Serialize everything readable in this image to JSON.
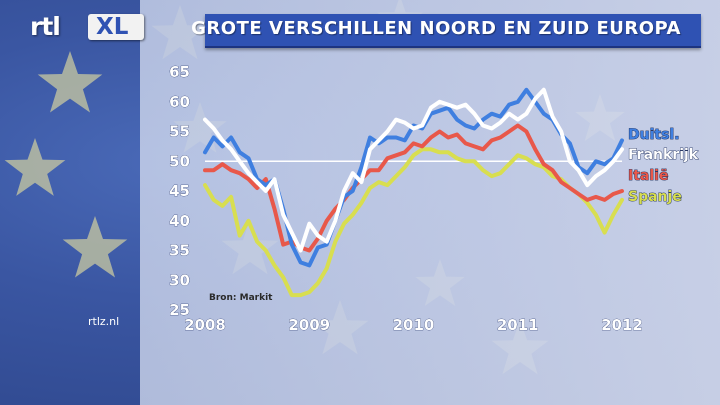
{
  "header": {
    "title": "GROTE VERSCHILLEN NOORD EN ZUID EUROPA",
    "logo_text": "rtl",
    "logo_badge": "XL"
  },
  "footer": {
    "url": "rtlz.nl"
  },
  "colors": {
    "titlebar": "#2f52b3",
    "background": "#3a56a2",
    "Duitsl.": "#3f7fe0",
    "Frankrijk": "#ffffff",
    "Italië": "#e8584a",
    "Spanje": "#d8de50"
  },
  "chart_data": {
    "type": "line",
    "title": "",
    "xlabel": "",
    "ylabel": "",
    "source": "Bron: Markit",
    "xlim": [
      2008,
      2012
    ],
    "ylim": [
      25,
      65
    ],
    "x_ticks": [
      "2008",
      "2009",
      "2010",
      "2011",
      "2012"
    ],
    "y_ticks": [
      65,
      60,
      55,
      50,
      45,
      40,
      35,
      30,
      25
    ],
    "reference_line": 50,
    "grid": false,
    "legend_position": "right",
    "x": [
      2008.0,
      2008.083,
      2008.167,
      2008.25,
      2008.333,
      2008.417,
      2008.5,
      2008.583,
      2008.667,
      2008.75,
      2008.833,
      2008.917,
      2009.0,
      2009.083,
      2009.167,
      2009.25,
      2009.333,
      2009.417,
      2009.5,
      2009.583,
      2009.667,
      2009.75,
      2009.833,
      2009.917,
      2010.0,
      2010.083,
      2010.167,
      2010.25,
      2010.333,
      2010.417,
      2010.5,
      2010.583,
      2010.667,
      2010.75,
      2010.833,
      2010.917,
      2011.0,
      2011.083,
      2011.167,
      2011.25,
      2011.333,
      2011.417,
      2011.5,
      2011.583,
      2011.667,
      2011.75,
      2011.833,
      2011.917,
      2012.0
    ],
    "series": [
      {
        "name": "Duitsl.",
        "values": [
          51.5,
          54,
          52.5,
          54,
          51.5,
          50.5,
          47,
          46,
          47,
          42,
          36,
          33,
          32.5,
          35.5,
          36,
          40,
          44,
          45,
          49,
          54,
          53,
          54,
          54,
          53.5,
          56,
          55.5,
          58,
          58.5,
          59,
          57,
          56,
          55.5,
          57,
          58,
          57.5,
          59.5,
          60,
          62,
          60,
          58,
          57,
          54.5,
          53,
          49,
          48,
          50,
          49.5,
          50.5,
          53.5
        ]
      },
      {
        "name": "Frankrijk",
        "values": [
          57,
          55.5,
          53.5,
          52,
          50,
          48,
          46.5,
          45,
          47,
          41,
          38,
          35,
          39.5,
          37.5,
          36.5,
          40,
          45,
          48,
          46.5,
          52,
          53.5,
          55,
          57,
          56.5,
          55.5,
          56,
          59,
          60,
          59.5,
          59,
          59.5,
          58,
          56,
          55.5,
          56.5,
          58,
          57,
          58,
          60.5,
          62,
          57.5,
          55,
          50,
          48.5,
          46,
          47.5,
          48.5,
          50,
          52
        ]
      },
      {
        "name": "Italië",
        "values": [
          48.5,
          48.5,
          49.5,
          48.5,
          48,
          47,
          45.5,
          47,
          42,
          36,
          36.5,
          35.5,
          35,
          37,
          40,
          42,
          43.5,
          45.5,
          47,
          48.5,
          48.5,
          50.5,
          51,
          51.5,
          53,
          52.5,
          54,
          55,
          54,
          54.5,
          53,
          52.5,
          52,
          53.5,
          54,
          55,
          56,
          55,
          52,
          49.5,
          48.5,
          46.5,
          45.5,
          44.5,
          43.5,
          44,
          43.5,
          44.5,
          45
        ]
      },
      {
        "name": "Spanje",
        "values": [
          46,
          43.5,
          42.5,
          44,
          37.5,
          40,
          36.5,
          35,
          32.5,
          30.5,
          27.5,
          27.5,
          28,
          29.5,
          32,
          36.5,
          39.5,
          41,
          43,
          45.5,
          46.5,
          46,
          47.5,
          49,
          51,
          52,
          52,
          51.5,
          51.5,
          50.5,
          50,
          50,
          48.5,
          47.5,
          48,
          49.5,
          51,
          50.5,
          49.5,
          49,
          47.5,
          47,
          45.5,
          44.5,
          43,
          41,
          38,
          41,
          43.5
        ]
      }
    ]
  }
}
